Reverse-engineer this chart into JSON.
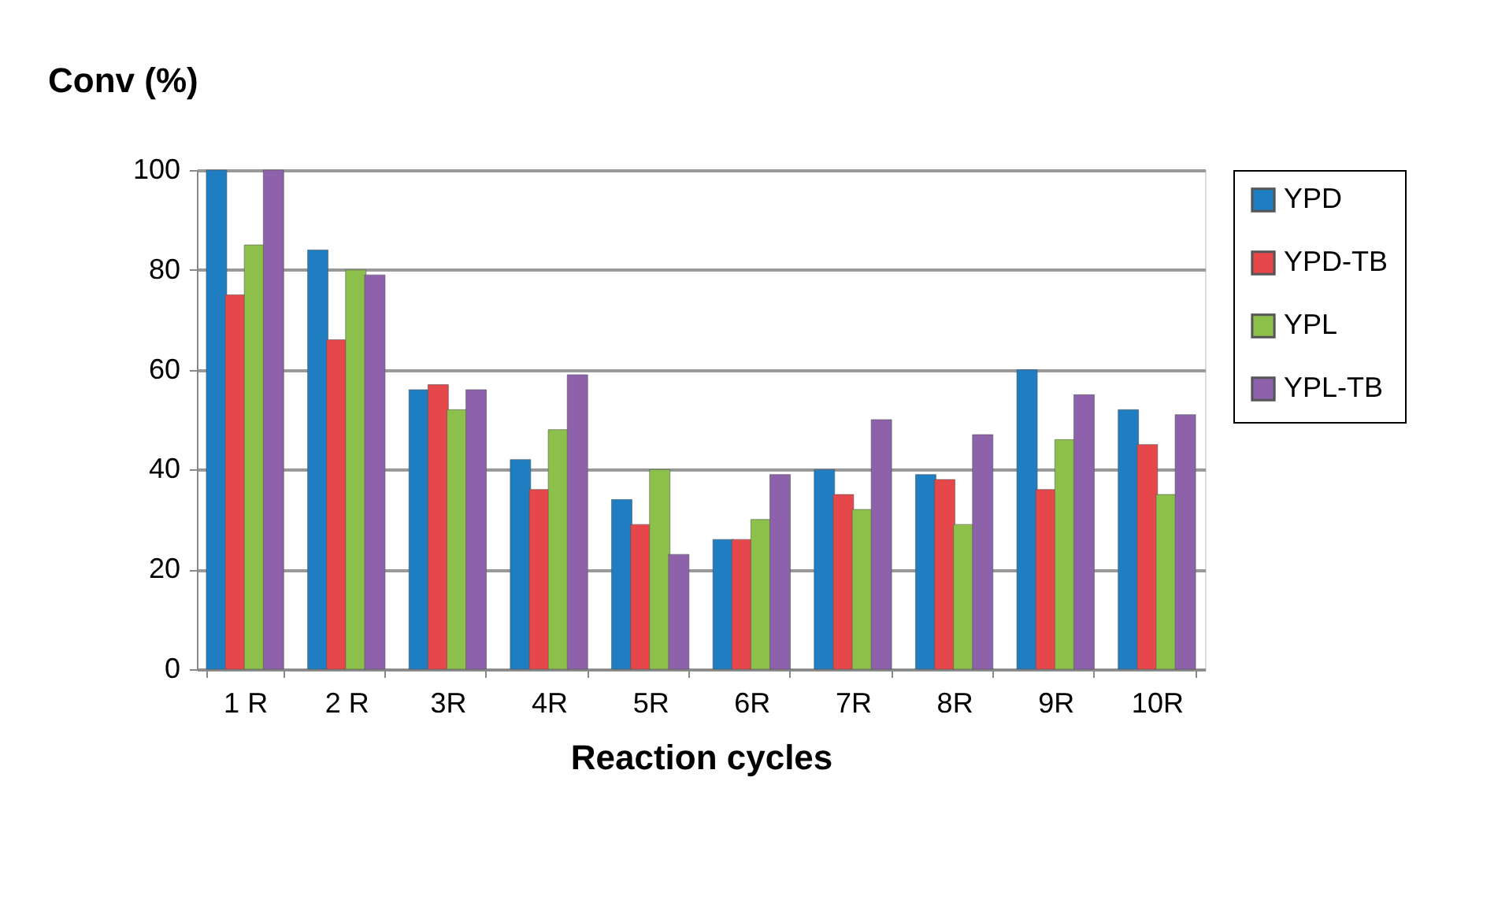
{
  "chart_data": {
    "type": "bar",
    "xlabel": "Reaction cycles",
    "ylabel": "Conv (%)",
    "categories": [
      "1 R",
      "2 R",
      "3R",
      "4R",
      "5R",
      "6R",
      "7R",
      "8R",
      "9R",
      "10R"
    ],
    "series": [
      {
        "name": "YPD",
        "color": "#1f7ec2",
        "values": [
          100,
          84,
          56,
          42,
          34,
          26,
          40,
          39,
          60,
          52
        ]
      },
      {
        "name": "YPD-TB",
        "color": "#e5474a",
        "values": [
          75,
          66,
          57,
          36,
          29,
          26,
          35,
          38,
          36,
          45
        ]
      },
      {
        "name": "YPL",
        "color": "#8cc04a",
        "values": [
          85,
          80,
          52,
          48,
          40,
          30,
          32,
          29,
          46,
          35
        ]
      },
      {
        "name": "YPL-TB",
        "color": "#8d62ab",
        "values": [
          100,
          79,
          56,
          59,
          23,
          39,
          50,
          47,
          55,
          51
        ]
      }
    ],
    "ylim": [
      0,
      100
    ],
    "yticks": [
      0,
      20,
      40,
      60,
      80,
      100
    ],
    "grid": "y",
    "legend": "right"
  }
}
